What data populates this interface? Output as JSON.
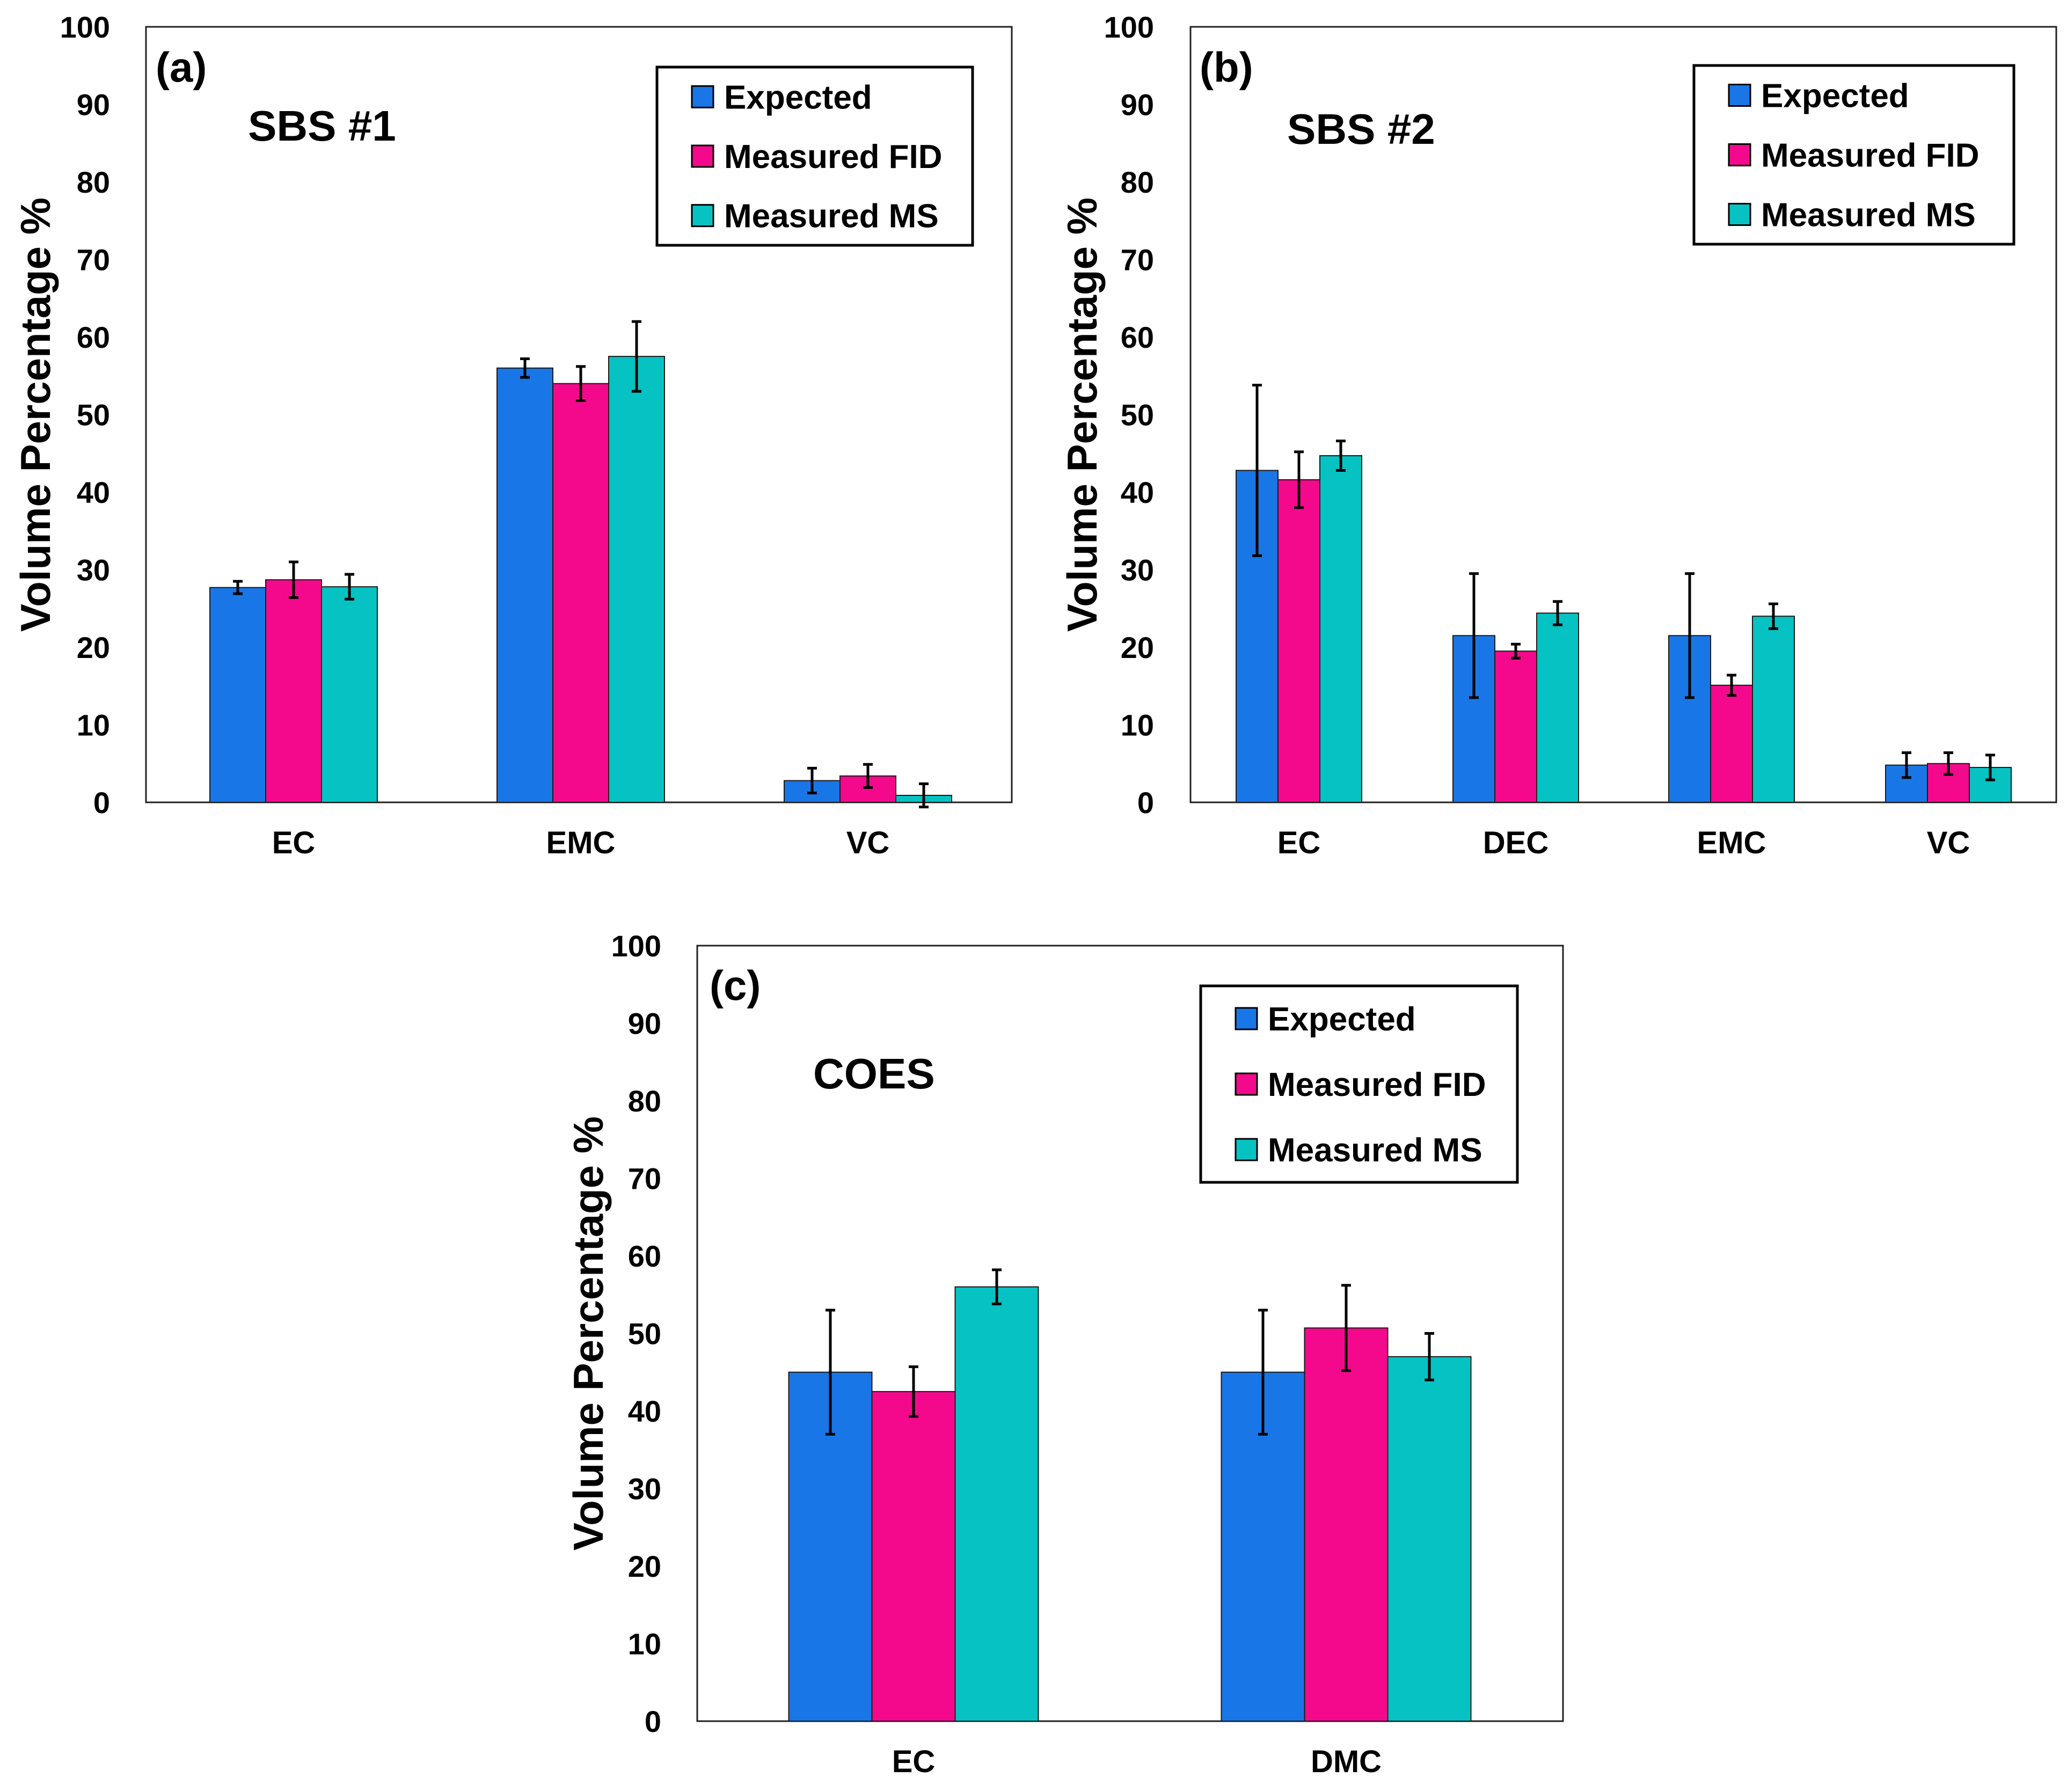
{
  "colors": {
    "expected": "#1976e6",
    "measured_fid": "#f5098c",
    "measured_ms": "#07c2c2",
    "axis": "#000000"
  },
  "chart_data": [
    {
      "id": "a",
      "type": "bar",
      "panel_label": "(a)",
      "title": "SBS #1",
      "ylabel": "Volume Percentage %",
      "xlabel": "",
      "ylim": [
        0,
        100
      ],
      "yticks": [
        0,
        10,
        20,
        30,
        40,
        50,
        60,
        70,
        80,
        90,
        100
      ],
      "legend": "top-right",
      "categories": [
        "EC",
        "EMC",
        "VC"
      ],
      "series": [
        {
          "name": "Expected",
          "values": [
            27.7,
            56.0,
            2.8
          ],
          "errors": [
            0.8,
            1.2,
            1.6
          ]
        },
        {
          "name": "Measured FID",
          "values": [
            28.7,
            54.0,
            3.4
          ],
          "errors": [
            2.3,
            2.2,
            1.5
          ]
        },
        {
          "name": "Measured MS",
          "values": [
            27.8,
            57.5,
            0.9
          ],
          "errors": [
            1.6,
            4.5,
            1.5
          ]
        }
      ]
    },
    {
      "id": "b",
      "type": "bar",
      "panel_label": "(b)",
      "title": "SBS #2",
      "ylabel": "Volume Percentage %",
      "xlabel": "",
      "ylim": [
        0,
        100
      ],
      "yticks": [
        0,
        10,
        20,
        30,
        40,
        50,
        60,
        70,
        80,
        90,
        100
      ],
      "legend": "top-right",
      "categories": [
        "EC",
        "DEC",
        "EMC",
        "VC"
      ],
      "series": [
        {
          "name": "Expected",
          "values": [
            42.8,
            21.5,
            21.5,
            4.8
          ],
          "errors": [
            11.0,
            8.0,
            8.0,
            1.6
          ]
        },
        {
          "name": "Measured FID",
          "values": [
            41.6,
            19.5,
            15.1,
            5.0
          ],
          "errors": [
            3.6,
            0.9,
            1.3,
            1.4
          ]
        },
        {
          "name": "Measured MS",
          "values": [
            44.7,
            24.4,
            24.0,
            4.5
          ],
          "errors": [
            1.9,
            1.5,
            1.6,
            1.6
          ]
        }
      ]
    },
    {
      "id": "c",
      "type": "bar",
      "panel_label": "(c)",
      "title": "COES",
      "ylabel": "Volume Percentage %",
      "xlabel": "",
      "ylim": [
        0,
        100
      ],
      "yticks": [
        0,
        10,
        20,
        30,
        40,
        50,
        60,
        70,
        80,
        90,
        100
      ],
      "legend": "top-right",
      "categories": [
        "EC",
        "DMC"
      ],
      "series": [
        {
          "name": "Expected",
          "values": [
            45.0,
            45.0
          ],
          "errors": [
            8.0,
            8.0
          ]
        },
        {
          "name": "Measured FID",
          "values": [
            42.5,
            50.7
          ],
          "errors": [
            3.2,
            5.5
          ]
        },
        {
          "name": "Measured MS",
          "values": [
            56.0,
            47.0
          ],
          "errors": [
            2.2,
            3.0
          ]
        }
      ]
    }
  ]
}
